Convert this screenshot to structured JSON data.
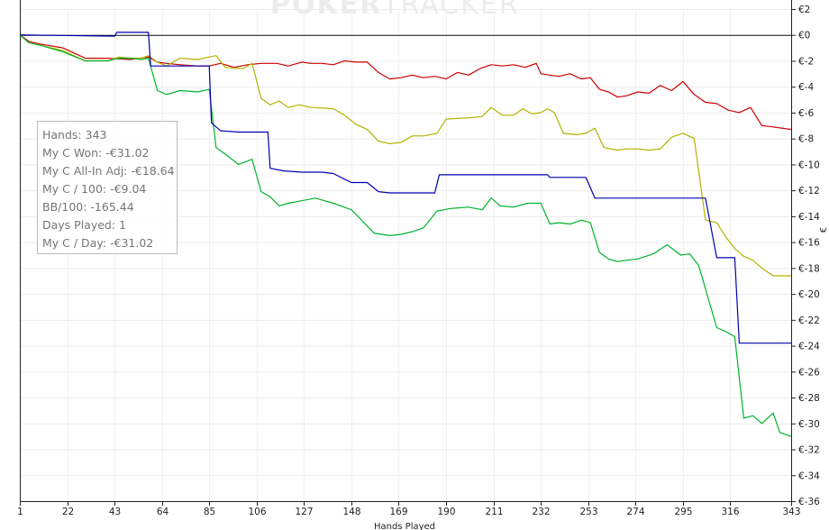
{
  "watermark": {
    "bold": "POKER",
    "thin": "TRACKER"
  },
  "stats": {
    "hands": "Hands: 343",
    "won": "My C Won: -€31.02",
    "allin": "My C All-In Adj: -€18.64",
    "per100": "My C / 100: -€9.04",
    "bb100": "BB/100: -165.44",
    "days": "Days Played: 1",
    "perday": "My C / Day: -€31.02"
  },
  "chart_data": {
    "type": "line",
    "xlabel": "Hands Played",
    "ylabel": "€",
    "xlim": [
      1,
      343
    ],
    "ylim": [
      -36,
      2
    ],
    "x_ticks": [
      "1",
      "22",
      "43",
      "64",
      "85",
      "106",
      "127",
      "148",
      "169",
      "190",
      "211",
      "232",
      "253",
      "274",
      "295",
      "316",
      "343"
    ],
    "y_ticks": [
      "€2",
      "€0",
      "€-2",
      "€-4",
      "€-6",
      "€-8",
      "€-10",
      "€-12",
      "€-14",
      "€-16",
      "€-18",
      "€-20",
      "€-22",
      "€-24",
      "€-26",
      "€-28",
      "€-30",
      "€-32",
      "€-34",
      "€-36"
    ],
    "grid": true,
    "series": [
      {
        "color": "#cc0000",
        "points": [
          [
            1,
            0
          ],
          [
            5,
            -0.5
          ],
          [
            10,
            -0.7
          ],
          [
            20,
            -1.0
          ],
          [
            30,
            -1.8
          ],
          [
            40,
            -1.8
          ],
          [
            50,
            -1.9
          ],
          [
            58,
            -1.7
          ],
          [
            62,
            -2.1
          ],
          [
            66,
            -2.2
          ],
          [
            72,
            -2.3
          ],
          [
            80,
            -2.4
          ],
          [
            85,
            -2.4
          ],
          [
            90,
            -2.2
          ],
          [
            96,
            -2.5
          ],
          [
            102,
            -2.3
          ],
          [
            108,
            -2.2
          ],
          [
            115,
            -2.2
          ],
          [
            120,
            -2.4
          ],
          [
            126,
            -2.1
          ],
          [
            130,
            -2.2
          ],
          [
            135,
            -2.2
          ],
          [
            140,
            -2.3
          ],
          [
            145,
            -2.0
          ],
          [
            150,
            -2.1
          ],
          [
            155,
            -2.1
          ],
          [
            160,
            -2.9
          ],
          [
            165,
            -3.4
          ],
          [
            170,
            -3.3
          ],
          [
            175,
            -3.1
          ],
          [
            180,
            -3.3
          ],
          [
            185,
            -3.2
          ],
          [
            190,
            -3.4
          ],
          [
            195,
            -2.9
          ],
          [
            200,
            -3.1
          ],
          [
            205,
            -2.6
          ],
          [
            210,
            -2.3
          ],
          [
            215,
            -2.4
          ],
          [
            220,
            -2.3
          ],
          [
            225,
            -2.5
          ],
          [
            230,
            -2.2
          ],
          [
            232,
            -3.0
          ],
          [
            236,
            -3.1
          ],
          [
            240,
            -3.2
          ],
          [
            245,
            -3.0
          ],
          [
            250,
            -3.4
          ],
          [
            254,
            -3.3
          ],
          [
            258,
            -4.2
          ],
          [
            262,
            -4.4
          ],
          [
            266,
            -4.8
          ],
          [
            270,
            -4.7
          ],
          [
            275,
            -4.4
          ],
          [
            280,
            -4.5
          ],
          [
            285,
            -3.9
          ],
          [
            290,
            -4.3
          ],
          [
            295,
            -3.6
          ],
          [
            300,
            -4.6
          ],
          [
            305,
            -5.2
          ],
          [
            310,
            -5.3
          ],
          [
            315,
            -5.8
          ],
          [
            320,
            -6.0
          ],
          [
            325,
            -5.6
          ],
          [
            330,
            -7.0
          ],
          [
            335,
            -7.1
          ],
          [
            343,
            -7.3
          ]
        ]
      },
      {
        "color": "#b2b200",
        "points": [
          [
            1,
            0
          ],
          [
            5,
            -0.6
          ],
          [
            10,
            -0.8
          ],
          [
            20,
            -1.2
          ],
          [
            25,
            -1.6
          ],
          [
            30,
            -2.0
          ],
          [
            40,
            -2.0
          ],
          [
            45,
            -1.7
          ],
          [
            50,
            -1.8
          ],
          [
            55,
            -1.8
          ],
          [
            58,
            -1.6
          ],
          [
            62,
            -2.1
          ],
          [
            66,
            -2.4
          ],
          [
            72,
            -1.8
          ],
          [
            80,
            -1.9
          ],
          [
            85,
            -1.7
          ],
          [
            88,
            -1.6
          ],
          [
            92,
            -2.5
          ],
          [
            100,
            -2.6
          ],
          [
            104,
            -2.2
          ],
          [
            108,
            -4.9
          ],
          [
            112,
            -5.4
          ],
          [
            116,
            -5.1
          ],
          [
            120,
            -5.6
          ],
          [
            125,
            -5.4
          ],
          [
            130,
            -5.6
          ],
          [
            140,
            -5.7
          ],
          [
            145,
            -6.2
          ],
          [
            150,
            -6.9
          ],
          [
            155,
            -7.3
          ],
          [
            160,
            -8.2
          ],
          [
            165,
            -8.4
          ],
          [
            170,
            -8.3
          ],
          [
            175,
            -7.8
          ],
          [
            180,
            -7.8
          ],
          [
            186,
            -7.6
          ],
          [
            190,
            -6.5
          ],
          [
            200,
            -6.4
          ],
          [
            206,
            -6.3
          ],
          [
            210,
            -5.6
          ],
          [
            215,
            -6.2
          ],
          [
            220,
            -6.2
          ],
          [
            224,
            -5.7
          ],
          [
            228,
            -6.1
          ],
          [
            232,
            -6.0
          ],
          [
            235,
            -5.7
          ],
          [
            238,
            -6.0
          ],
          [
            242,
            -7.6
          ],
          [
            248,
            -7.7
          ],
          [
            252,
            -7.6
          ],
          [
            256,
            -7.2
          ],
          [
            260,
            -8.7
          ],
          [
            266,
            -8.9
          ],
          [
            270,
            -8.8
          ],
          [
            275,
            -8.8
          ],
          [
            280,
            -8.9
          ],
          [
            285,
            -8.8
          ],
          [
            290,
            -7.9
          ],
          [
            295,
            -7.6
          ],
          [
            300,
            -8.0
          ],
          [
            305,
            -14.3
          ],
          [
            310,
            -14.5
          ],
          [
            314,
            -15.6
          ],
          [
            318,
            -16.5
          ],
          [
            322,
            -17.1
          ],
          [
            326,
            -17.4
          ],
          [
            330,
            -18.0
          ],
          [
            335,
            -18.6
          ],
          [
            343,
            -18.6
          ]
        ]
      },
      {
        "color": "#00b22b",
        "points": [
          [
            1,
            0
          ],
          [
            5,
            -0.6
          ],
          [
            10,
            -0.8
          ],
          [
            20,
            -1.3
          ],
          [
            30,
            -2.0
          ],
          [
            40,
            -2.0
          ],
          [
            45,
            -1.8
          ],
          [
            50,
            -1.8
          ],
          [
            55,
            -1.9
          ],
          [
            58,
            -1.8
          ],
          [
            62,
            -4.3
          ],
          [
            66,
            -4.6
          ],
          [
            72,
            -4.3
          ],
          [
            80,
            -4.4
          ],
          [
            85,
            -4.2
          ],
          [
            88,
            -8.7
          ],
          [
            92,
            -9.2
          ],
          [
            98,
            -10.0
          ],
          [
            104,
            -9.6
          ],
          [
            108,
            -12.1
          ],
          [
            112,
            -12.5
          ],
          [
            116,
            -13.2
          ],
          [
            120,
            -13.0
          ],
          [
            126,
            -12.8
          ],
          [
            132,
            -12.6
          ],
          [
            140,
            -13.0
          ],
          [
            148,
            -13.5
          ],
          [
            152,
            -14.2
          ],
          [
            158,
            -15.3
          ],
          [
            165,
            -15.5
          ],
          [
            170,
            -15.4
          ],
          [
            175,
            -15.2
          ],
          [
            180,
            -14.9
          ],
          [
            186,
            -13.6
          ],
          [
            192,
            -13.4
          ],
          [
            200,
            -13.3
          ],
          [
            206,
            -13.5
          ],
          [
            210,
            -12.6
          ],
          [
            214,
            -13.2
          ],
          [
            220,
            -13.3
          ],
          [
            226,
            -13.0
          ],
          [
            232,
            -13.0
          ],
          [
            236,
            -14.6
          ],
          [
            240,
            -14.5
          ],
          [
            245,
            -14.6
          ],
          [
            250,
            -14.3
          ],
          [
            254,
            -14.5
          ],
          [
            258,
            -16.8
          ],
          [
            262,
            -17.3
          ],
          [
            266,
            -17.5
          ],
          [
            270,
            -17.4
          ],
          [
            275,
            -17.3
          ],
          [
            282,
            -16.9
          ],
          [
            288,
            -16.2
          ],
          [
            294,
            -17.0
          ],
          [
            298,
            -16.9
          ],
          [
            302,
            -17.8
          ],
          [
            306,
            -20.2
          ],
          [
            310,
            -22.6
          ],
          [
            314,
            -22.9
          ],
          [
            318,
            -23.3
          ],
          [
            322,
            -29.6
          ],
          [
            326,
            -29.4
          ],
          [
            330,
            -30.0
          ],
          [
            335,
            -29.2
          ],
          [
            338,
            -30.7
          ],
          [
            343,
            -31.0
          ]
        ]
      },
      {
        "color": "#0000b2",
        "points": [
          [
            1,
            0
          ],
          [
            43,
            -0.1
          ],
          [
            44,
            0.2
          ],
          [
            58,
            0.2
          ],
          [
            59,
            -2.4
          ],
          [
            74,
            -2.4
          ],
          [
            85,
            -2.4
          ],
          [
            86,
            -6.8
          ],
          [
            90,
            -7.4
          ],
          [
            98,
            -7.5
          ],
          [
            111,
            -7.5
          ],
          [
            112,
            -10.3
          ],
          [
            118,
            -10.5
          ],
          [
            126,
            -10.6
          ],
          [
            135,
            -10.6
          ],
          [
            140,
            -10.7
          ],
          [
            148,
            -11.4
          ],
          [
            155,
            -11.4
          ],
          [
            160,
            -12.1
          ],
          [
            165,
            -12.2
          ],
          [
            185,
            -12.2
          ],
          [
            187,
            -10.8
          ],
          [
            205,
            -10.8
          ],
          [
            235,
            -10.8
          ],
          [
            236,
            -11.0
          ],
          [
            252,
            -11.0
          ],
          [
            256,
            -12.6
          ],
          [
            280,
            -12.6
          ],
          [
            305,
            -12.6
          ],
          [
            310,
            -17.2
          ],
          [
            318,
            -17.2
          ],
          [
            320,
            -23.8
          ],
          [
            343,
            -23.8
          ]
        ]
      }
    ]
  }
}
